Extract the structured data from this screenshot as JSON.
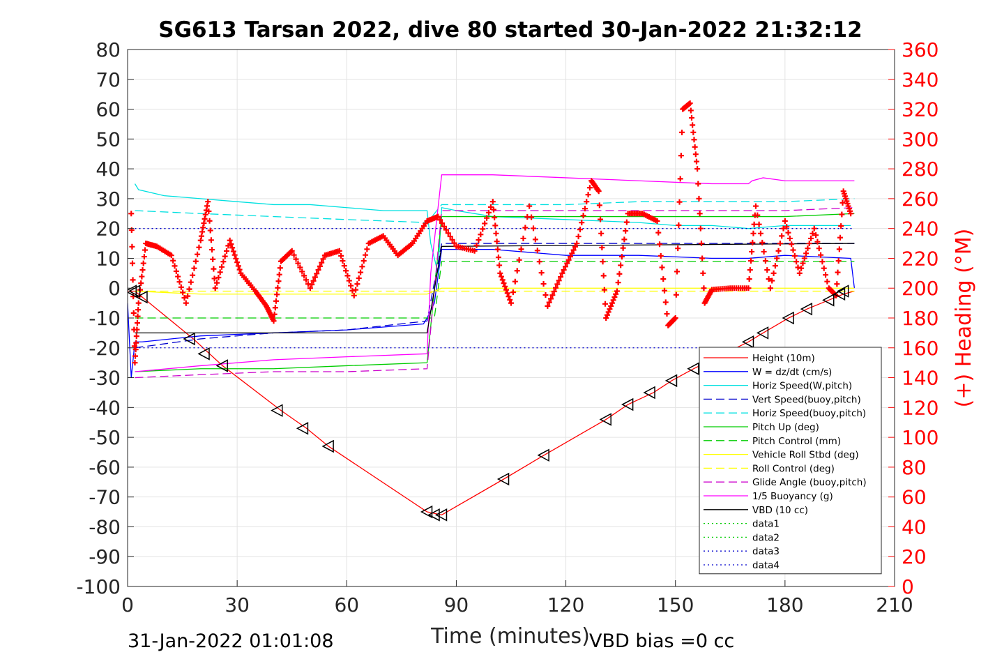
{
  "chart_data": {
    "type": "line",
    "title": "SG613 Tarsan 2022, dive 80 started 30-Jan-2022 21:32:12",
    "xlabel": "Time (minutes)",
    "ylabel_right": "(+) Heading (°M)",
    "footer_left": "31-Jan-2022 01:01:08",
    "footer_right": "VBD bias =0 cc",
    "xlim": [
      0,
      210
    ],
    "ylim_left": [
      -100,
      80
    ],
    "ylim_right": [
      0,
      360
    ],
    "xticks": [
      "0",
      "30",
      "60",
      "90",
      "120",
      "150",
      "180",
      "210"
    ],
    "yticks_left": [
      "80",
      "70",
      "60",
      "50",
      "40",
      "30",
      "20",
      "10",
      "0",
      "-10",
      "-20",
      "-30",
      "-40",
      "-50",
      "-60",
      "-70",
      "-80",
      "-90",
      "-100"
    ],
    "yticks_right": [
      "360",
      "340",
      "320",
      "300",
      "280",
      "260",
      "240",
      "220",
      "200",
      "180",
      "160",
      "140",
      "120",
      "100",
      "80",
      "60",
      "40",
      "20",
      "0"
    ],
    "grid": true,
    "legend_position": "lower-right",
    "right_axis_color": "#ff0000",
    "series": [
      {
        "name": "Height (10m)",
        "color": "#ff0000",
        "style": "solid",
        "axis": "left",
        "x": [
          0,
          1,
          2,
          4,
          18,
          26,
          42,
          49,
          55,
          82,
          86,
          103,
          114,
          131,
          137,
          144,
          149,
          155,
          170,
          174,
          181,
          186,
          192,
          196,
          199
        ],
        "y": [
          -1,
          -1,
          -1,
          -3,
          -17,
          -26,
          -41,
          -47,
          -53,
          -75,
          -76,
          -64,
          -56,
          -44,
          -39,
          -35,
          -31,
          -27,
          -18,
          -15,
          -10,
          -7,
          -4,
          -2,
          -1
        ]
      },
      {
        "name": "W = dz/dt (cm/s)",
        "color": "#0000ff",
        "style": "solid",
        "axis": "left",
        "x": [
          0,
          1,
          2,
          4,
          20,
          40,
          60,
          81,
          82,
          84,
          86,
          100,
          120,
          140,
          160,
          170,
          180,
          198,
          199
        ],
        "y": [
          -5,
          -30,
          -18,
          -18,
          -16,
          -15,
          -14,
          -12,
          -10,
          -5,
          13,
          13,
          11,
          11,
          10,
          10,
          11,
          10,
          0
        ]
      },
      {
        "name": "Horiz Speed(W,pitch)",
        "color": "#00e0e0",
        "style": "solid",
        "axis": "left",
        "x": [
          2,
          3,
          10,
          20,
          30,
          40,
          50,
          60,
          70,
          82,
          83,
          85,
          86,
          90,
          100,
          120,
          140,
          150,
          160,
          170,
          180,
          190,
          198
        ],
        "y": [
          35,
          33,
          31,
          30,
          29,
          28,
          28,
          27,
          26,
          26,
          15,
          5,
          27,
          26,
          24,
          23,
          22,
          21,
          21,
          20,
          21,
          21,
          21
        ]
      },
      {
        "name": "Vert Speed(buoy,pitch)",
        "color": "#0000cd",
        "style": "dashed",
        "axis": "left",
        "x": [
          2,
          20,
          40,
          60,
          82,
          86,
          100,
          120,
          140,
          160,
          180,
          199
        ],
        "y": [
          -20,
          -17,
          -15,
          -14,
          -11,
          15,
          15,
          15,
          15,
          15,
          15,
          15
        ]
      },
      {
        "name": "Horiz Speed(buoy,pitch)",
        "color": "#00e0e0",
        "style": "dashed",
        "axis": "left",
        "x": [
          2,
          20,
          40,
          60,
          82,
          86,
          100,
          120,
          140,
          160,
          180,
          199
        ],
        "y": [
          26,
          25,
          24,
          23,
          22,
          28,
          28,
          28,
          29,
          29,
          29,
          30
        ]
      },
      {
        "name": "Pitch Up (deg)",
        "color": "#00cc00",
        "style": "solid",
        "axis": "left",
        "x": [
          2,
          20,
          40,
          60,
          82,
          86,
          100,
          120,
          140,
          160,
          180,
          199
        ],
        "y": [
          -28,
          -27,
          -27,
          -26,
          -25,
          24,
          24,
          24,
          24,
          24,
          24,
          25
        ]
      },
      {
        "name": "Pitch Control (mm)",
        "color": "#00cc00",
        "style": "dashed",
        "axis": "left",
        "x": [
          2,
          84,
          86,
          199
        ],
        "y": [
          -10,
          -10,
          9,
          9
        ]
      },
      {
        "name": "Vehicle Roll Stbd (deg)",
        "color": "#ffff00",
        "style": "solid",
        "axis": "left",
        "x": [
          2,
          20,
          40,
          60,
          82,
          86,
          100,
          120,
          140,
          160,
          180,
          199
        ],
        "y": [
          -1,
          -2,
          -2,
          -2,
          -2,
          0,
          0,
          0,
          0,
          0,
          0,
          0
        ]
      },
      {
        "name": "Roll Control (deg)",
        "color": "#ffff00",
        "style": "dashed",
        "axis": "left",
        "x": [
          2,
          199
        ],
        "y": [
          -1,
          -1
        ]
      },
      {
        "name": "Glide Angle (buoy,pitch)",
        "color": "#cc00cc",
        "style": "dashed",
        "axis": "left",
        "x": [
          2,
          20,
          40,
          60,
          82,
          86,
          100,
          120,
          140,
          160,
          180,
          199
        ],
        "y": [
          -30,
          -29,
          -28,
          -28,
          -27,
          26,
          26,
          26,
          26,
          26,
          26,
          27
        ]
      },
      {
        "name": "1/5 Buoyancy (g)",
        "color": "#ff00ff",
        "style": "solid",
        "axis": "left",
        "x": [
          2,
          20,
          40,
          60,
          82,
          83,
          86,
          100,
          120,
          140,
          160,
          170,
          171,
          174,
          180,
          199
        ],
        "y": [
          -28,
          -26,
          -24,
          -23,
          -22,
          5,
          38,
          38,
          37,
          36,
          35,
          35,
          36,
          37,
          36,
          36
        ]
      },
      {
        "name": "VBD (10 cc)",
        "color": "#000000",
        "style": "solid",
        "axis": "left",
        "x": [
          2,
          82,
          86,
          199
        ],
        "y": [
          -15,
          -15,
          14,
          15
        ]
      },
      {
        "name": "data1",
        "color": "#00cc00",
        "style": "dotted",
        "axis": "left",
        "x": [],
        "y": []
      },
      {
        "name": "data2",
        "color": "#00cc00",
        "style": "dotted",
        "axis": "left",
        "x": [],
        "y": []
      },
      {
        "name": "data3",
        "color": "#0000cd",
        "style": "dotted",
        "axis": "left",
        "x": [
          2,
          199
        ],
        "y": [
          -20,
          -20
        ]
      },
      {
        "name": "data4",
        "color": "#0000cd",
        "style": "dotted",
        "axis": "left",
        "x": [
          2,
          199
        ],
        "y": [
          20,
          20
        ]
      }
    ],
    "heading": {
      "axis": "right",
      "color": "#ff0000",
      "marker": "+",
      "x": [
        1,
        2,
        3,
        5,
        8,
        12,
        16,
        20,
        22,
        24,
        28,
        31,
        35,
        38,
        40,
        42,
        45,
        50,
        54,
        58,
        62,
        66,
        70,
        74,
        78,
        82,
        85,
        90,
        95,
        100,
        102,
        105,
        110,
        115,
        119,
        123,
        127,
        129,
        131,
        134,
        137,
        141,
        145,
        148,
        150,
        152,
        154,
        156,
        158,
        160,
        165,
        170,
        172,
        176,
        180,
        184,
        188,
        192,
        194,
        196,
        198
      ],
      "y": [
        250,
        150,
        190,
        230,
        228,
        222,
        190,
        232,
        258,
        200,
        232,
        210,
        198,
        188,
        178,
        218,
        225,
        200,
        222,
        225,
        195,
        230,
        235,
        222,
        230,
        245,
        248,
        228,
        225,
        258,
        210,
        190,
        255,
        188,
        210,
        230,
        272,
        265,
        180,
        198,
        250,
        250,
        245,
        175,
        180,
        320,
        324,
        280,
        190,
        199,
        200,
        200,
        255,
        200,
        245,
        210,
        240,
        200,
        195,
        265,
        250
      ]
    },
    "vbd_markers": {
      "description": "triangle markers on the Height trace",
      "x": [
        1,
        2,
        4,
        17,
        21,
        26,
        41,
        48,
        55,
        82,
        84,
        86,
        103,
        114,
        131,
        137,
        143,
        149,
        155,
        170,
        174,
        181,
        186,
        192,
        195,
        196
      ],
      "y": [
        -1,
        -1,
        -3,
        -17,
        -22,
        -26,
        -41,
        -47,
        -53,
        -75,
        -76,
        -76,
        -64,
        -56,
        -44,
        -39,
        -35,
        -31,
        -27,
        -18,
        -15,
        -10,
        -7,
        -4,
        -2,
        -1
      ]
    }
  }
}
